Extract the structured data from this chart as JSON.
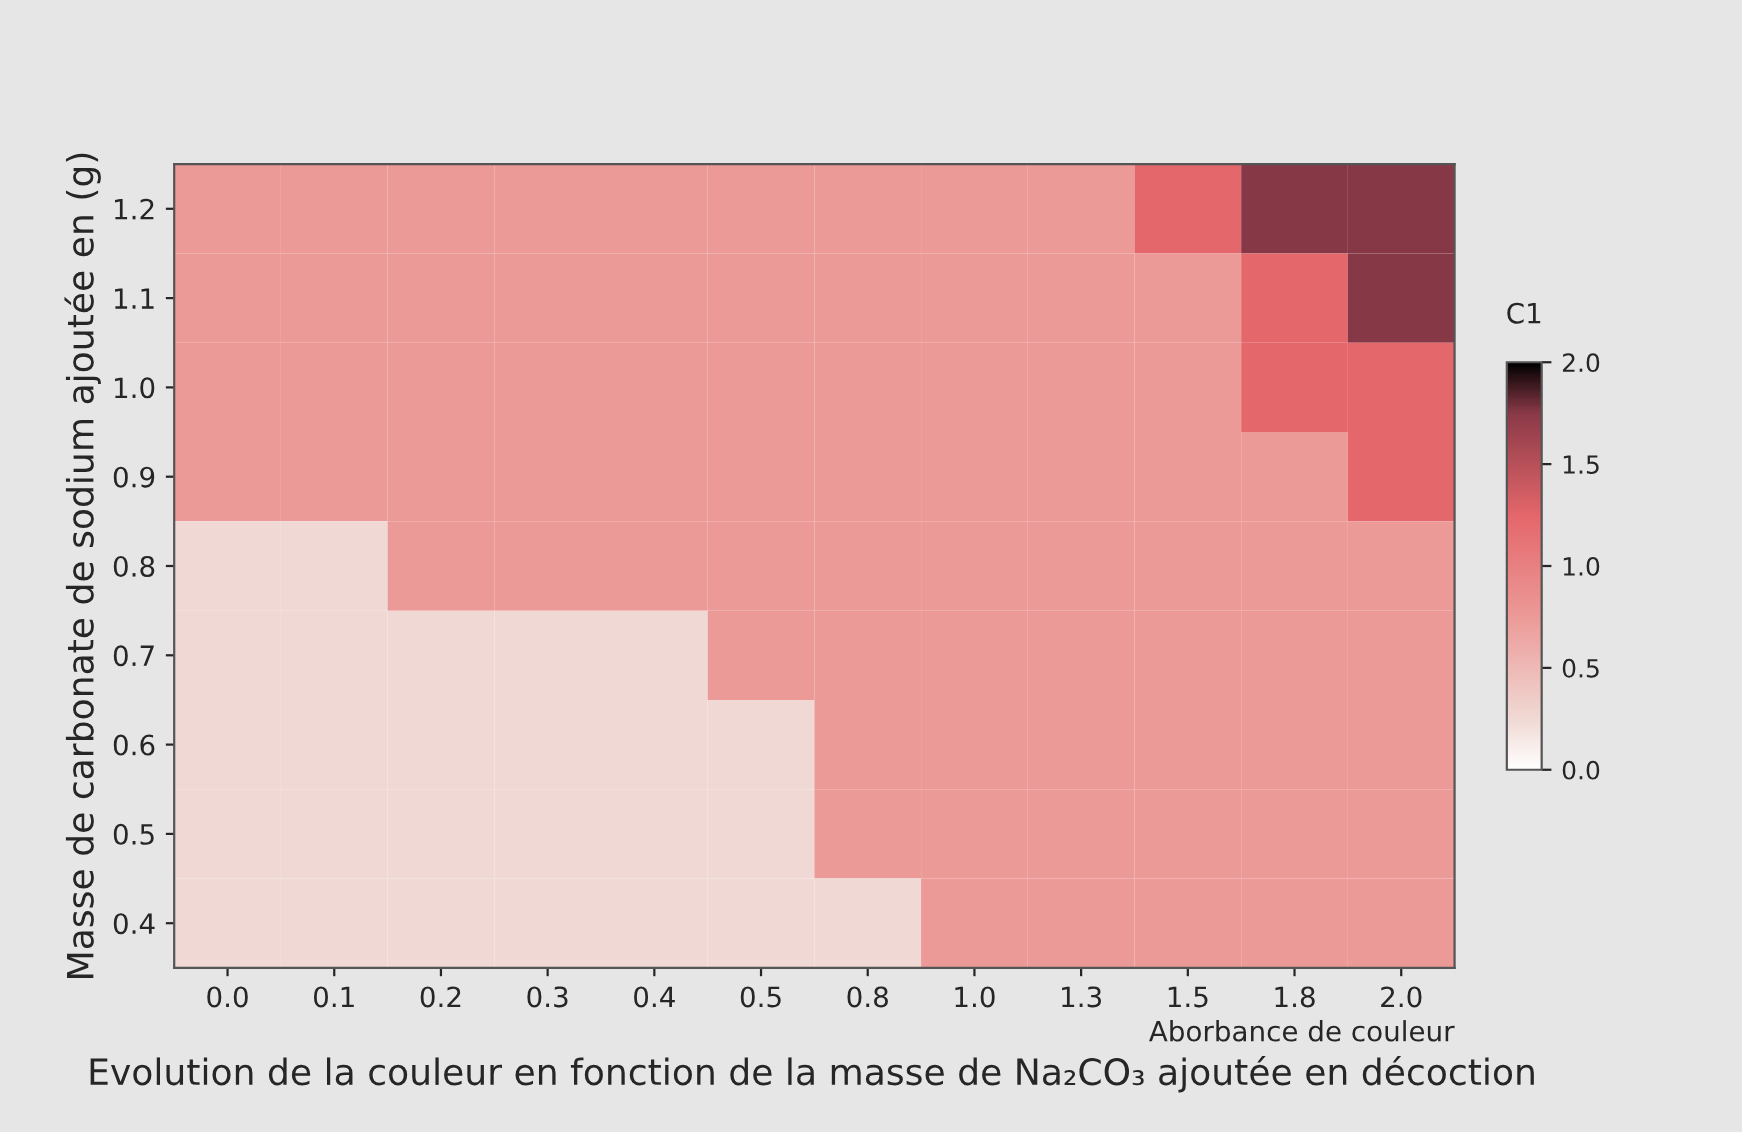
{
  "chart_data": {
    "type": "heatmap",
    "title": "Evolution de la couleur en fonction de la masse de Na₂CO₃ ajoutée en décoction",
    "xlabel": "Aborbance de couleur",
    "ylabel": "Masse de carbonate de sodium ajoutée en (g)",
    "categories": [
      "0.0",
      "0.1",
      "0.2",
      "0.3",
      "0.4",
      "0.5",
      "0.8",
      "1.0",
      "1.3",
      "1.5",
      "1.8",
      "2.0"
    ],
    "y_categories": [
      "1.2",
      "1.1",
      "1.0",
      "0.9",
      "0.8",
      "0.7",
      "0.6",
      "0.5",
      "0.4"
    ],
    "cells": [
      [
        0.75,
        0.75,
        0.75,
        0.75,
        0.75,
        0.75,
        0.75,
        0.75,
        0.75,
        1.25,
        1.75,
        1.75
      ],
      [
        0.75,
        0.75,
        0.75,
        0.75,
        0.75,
        0.75,
        0.75,
        0.75,
        0.75,
        0.75,
        1.25,
        1.75
      ],
      [
        0.75,
        0.75,
        0.75,
        0.75,
        0.75,
        0.75,
        0.75,
        0.75,
        0.75,
        0.75,
        1.25,
        1.25
      ],
      [
        0.75,
        0.75,
        0.75,
        0.75,
        0.75,
        0.75,
        0.75,
        0.75,
        0.75,
        0.75,
        0.75,
        1.25
      ],
      [
        0.25,
        0.25,
        0.75,
        0.75,
        0.75,
        0.75,
        0.75,
        0.75,
        0.75,
        0.75,
        0.75,
        0.75
      ],
      [
        0.25,
        0.25,
        0.25,
        0.25,
        0.25,
        0.75,
        0.75,
        0.75,
        0.75,
        0.75,
        0.75,
        0.75
      ],
      [
        0.25,
        0.25,
        0.25,
        0.25,
        0.25,
        0.25,
        0.75,
        0.75,
        0.75,
        0.75,
        0.75,
        0.75
      ],
      [
        0.25,
        0.25,
        0.25,
        0.25,
        0.25,
        0.25,
        0.75,
        0.75,
        0.75,
        0.75,
        0.75,
        0.75
      ],
      [
        0.25,
        0.25,
        0.25,
        0.25,
        0.25,
        0.25,
        0.25,
        0.75,
        0.75,
        0.75,
        0.75,
        0.75
      ]
    ],
    "clabel": "C1",
    "clim": [
      0.0,
      2.0
    ],
    "cticks": [
      {
        "value": 0,
        "label": "0.0"
      },
      0.5,
      {
        "value": 1,
        "label": "1.0"
      },
      1.5,
      {
        "value": 2,
        "label": "2.0"
      }
    ],
    "colors": [
      "#ffffff",
      "#f0d9d4",
      "#ec9a98",
      "#e4676b",
      "#8b3a48",
      "#000000"
    ]
  }
}
